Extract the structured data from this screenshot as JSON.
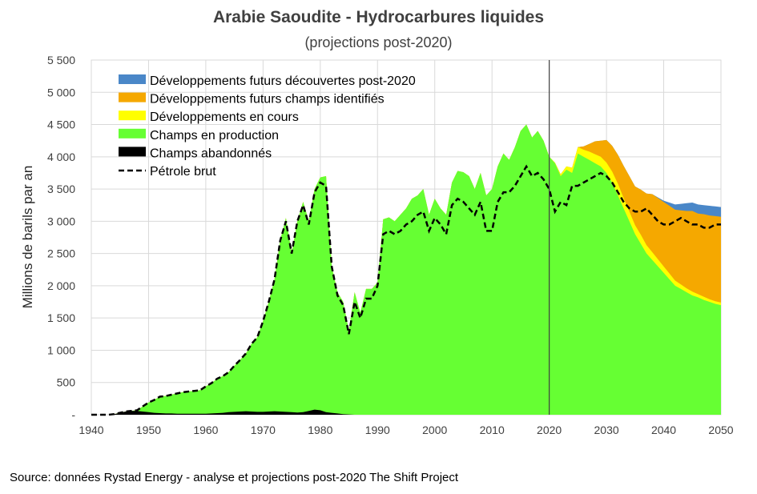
{
  "title": "Arabie Saoudite - Hydrocarbures liquides",
  "subtitle": "(projections post-2020)",
  "source": "Source:  données Rystad Energy - analyse et projections post-2020  The Shift Project",
  "colors": {
    "decouvertes": "#4a87c8",
    "identifies": "#f5a800",
    "en_cours": "#ffff00",
    "production": "#66ff33",
    "abandonnes": "#000000",
    "petrole": "#000000",
    "grid": "#d9d9d9",
    "marker_line": "#404040"
  },
  "chart_data": {
    "type": "area",
    "title": "Arabie Saoudite - Hydrocarbures liquides",
    "subtitle": "(projections post-2020)",
    "xlabel": "",
    "ylabel": "Millions de barils par an",
    "xlim": [
      1940,
      2050
    ],
    "ylim": [
      0,
      5500
    ],
    "x_ticks": [
      "1940",
      "1950",
      "1960",
      "1970",
      "1980",
      "1990",
      "2000",
      "2010",
      "2020",
      "2030",
      "2040",
      "2050"
    ],
    "y_ticks": [
      "-",
      "500",
      "1 000",
      "1 500",
      "2 000",
      "2 500",
      "3 000",
      "3 500",
      "4 000",
      "4 500",
      "5 000",
      "5 500"
    ],
    "grid": true,
    "legend_position": "top-left",
    "vertical_marker": 2020,
    "legend": [
      "Développements futurs découvertes post-2020",
      "Développements futurs champs identifiés",
      "Développements en cours",
      "Champs en production",
      "Champs abandonnés",
      "Pétrole brut"
    ],
    "x": [
      1940,
      1941,
      1942,
      1943,
      1944,
      1945,
      1946,
      1947,
      1948,
      1949,
      1950,
      1951,
      1952,
      1953,
      1954,
      1955,
      1956,
      1957,
      1958,
      1959,
      1960,
      1961,
      1962,
      1963,
      1964,
      1965,
      1966,
      1967,
      1968,
      1969,
      1970,
      1971,
      1972,
      1973,
      1974,
      1975,
      1976,
      1977,
      1978,
      1979,
      1980,
      1981,
      1982,
      1983,
      1984,
      1985,
      1986,
      1987,
      1988,
      1989,
      1990,
      1991,
      1992,
      1993,
      1994,
      1995,
      1996,
      1997,
      1998,
      1999,
      2000,
      2001,
      2002,
      2003,
      2004,
      2005,
      2006,
      2007,
      2008,
      2009,
      2010,
      2011,
      2012,
      2013,
      2014,
      2015,
      2016,
      2017,
      2018,
      2019,
      2020,
      2021,
      2022,
      2023,
      2024,
      2025,
      2026,
      2027,
      2028,
      2029,
      2030,
      2031,
      2032,
      2033,
      2034,
      2035,
      2036,
      2037,
      2038,
      2039,
      2040,
      2041,
      2042,
      2043,
      2044,
      2045,
      2046,
      2047,
      2048,
      2049,
      2050
    ],
    "series": [
      {
        "name": "Champs abandonnés",
        "values": [
          0,
          0,
          0,
          0,
          10,
          30,
          50,
          60,
          60,
          50,
          40,
          30,
          25,
          20,
          20,
          15,
          15,
          15,
          15,
          15,
          15,
          20,
          25,
          30,
          40,
          45,
          50,
          55,
          50,
          45,
          45,
          50,
          55,
          50,
          45,
          40,
          35,
          40,
          60,
          80,
          70,
          40,
          30,
          20,
          10,
          5,
          0,
          0,
          0,
          0,
          0,
          0,
          0,
          0,
          0,
          0,
          0,
          0,
          0,
          0,
          0,
          0,
          0,
          0,
          0,
          0,
          0,
          0,
          0,
          0,
          0,
          0,
          0,
          0,
          0,
          0,
          0,
          0,
          0,
          0,
          0,
          0,
          0,
          0,
          0,
          0,
          0,
          0,
          0,
          0,
          0,
          0,
          0,
          0,
          0,
          0,
          0,
          0,
          0,
          0,
          0,
          0,
          0,
          0,
          0,
          0,
          0,
          0,
          0,
          0,
          0
        ]
      },
      {
        "name": "Champs en production",
        "values": [
          0,
          0,
          0,
          0,
          10,
          30,
          50,
          60,
          70,
          130,
          190,
          230,
          280,
          290,
          310,
          330,
          350,
          360,
          370,
          380,
          440,
          490,
          560,
          600,
          660,
          760,
          850,
          950,
          1100,
          1200,
          1450,
          1750,
          2100,
          2700,
          3050,
          2500,
          3000,
          3300,
          3000,
          3500,
          3680,
          3700,
          2300,
          1900,
          1750,
          1300,
          1900,
          1580,
          1950,
          1950,
          2050,
          3030,
          3060,
          3000,
          3100,
          3200,
          3350,
          3400,
          3500,
          3100,
          3350,
          3200,
          3100,
          3600,
          3780,
          3760,
          3700,
          3500,
          3750,
          3400,
          3500,
          3850,
          4050,
          3950,
          4150,
          4400,
          4500,
          4300,
          4400,
          4250,
          4000,
          3900,
          3700,
          3800,
          3750,
          4050,
          4000,
          3950,
          3900,
          3850,
          3750,
          3600,
          3400,
          3200,
          3000,
          2800,
          2650,
          2500,
          2400,
          2300,
          2200,
          2100,
          2000,
          1950,
          1900,
          1850,
          1820,
          1780,
          1750,
          1720,
          1700
        ]
      },
      {
        "name": "Développements en cours",
        "values": [
          0,
          0,
          0,
          0,
          0,
          0,
          0,
          0,
          0,
          0,
          0,
          0,
          0,
          0,
          0,
          0,
          0,
          0,
          0,
          0,
          0,
          0,
          0,
          0,
          0,
          0,
          0,
          0,
          0,
          0,
          0,
          0,
          0,
          0,
          0,
          0,
          0,
          0,
          0,
          0,
          0,
          0,
          0,
          0,
          0,
          0,
          0,
          0,
          0,
          0,
          0,
          0,
          0,
          0,
          0,
          0,
          0,
          0,
          0,
          0,
          0,
          0,
          0,
          0,
          0,
          0,
          0,
          0,
          0,
          0,
          0,
          0,
          0,
          0,
          0,
          0,
          0,
          0,
          0,
          0,
          0,
          10,
          30,
          50,
          80,
          100,
          110,
          130,
          140,
          150,
          160,
          170,
          180,
          160,
          150,
          140,
          140,
          130,
          120,
          110,
          100,
          90,
          80,
          70,
          60,
          60,
          50,
          50,
          40,
          40,
          40
        ]
      },
      {
        "name": "Développements futurs champs identifiés",
        "values": [
          0,
          0,
          0,
          0,
          0,
          0,
          0,
          0,
          0,
          0,
          0,
          0,
          0,
          0,
          0,
          0,
          0,
          0,
          0,
          0,
          0,
          0,
          0,
          0,
          0,
          0,
          0,
          0,
          0,
          0,
          0,
          0,
          0,
          0,
          0,
          0,
          0,
          0,
          0,
          0,
          0,
          0,
          0,
          0,
          0,
          0,
          0,
          0,
          0,
          0,
          0,
          0,
          0,
          0,
          0,
          0,
          0,
          0,
          0,
          0,
          0,
          0,
          0,
          0,
          0,
          0,
          0,
          0,
          0,
          0,
          0,
          0,
          0,
          0,
          0,
          0,
          0,
          0,
          0,
          0,
          0,
          0,
          0,
          0,
          0,
          0,
          50,
          120,
          200,
          250,
          350,
          400,
          450,
          500,
          550,
          600,
          700,
          800,
          900,
          950,
          1000,
          1050,
          1100,
          1150,
          1200,
          1250,
          1250,
          1280,
          1300,
          1320,
          1330
        ]
      },
      {
        "name": "Développements futurs découvertes post-2020",
        "values": [
          0,
          0,
          0,
          0,
          0,
          0,
          0,
          0,
          0,
          0,
          0,
          0,
          0,
          0,
          0,
          0,
          0,
          0,
          0,
          0,
          0,
          0,
          0,
          0,
          0,
          0,
          0,
          0,
          0,
          0,
          0,
          0,
          0,
          0,
          0,
          0,
          0,
          0,
          0,
          0,
          0,
          0,
          0,
          0,
          0,
          0,
          0,
          0,
          0,
          0,
          0,
          0,
          0,
          0,
          0,
          0,
          0,
          0,
          0,
          0,
          0,
          0,
          0,
          0,
          0,
          0,
          0,
          0,
          0,
          0,
          0,
          0,
          0,
          0,
          0,
          0,
          0,
          0,
          0,
          0,
          0,
          0,
          0,
          0,
          0,
          0,
          0,
          0,
          0,
          0,
          0,
          0,
          0,
          0,
          0,
          0,
          0,
          0,
          0,
          10,
          20,
          50,
          80,
          100,
          120,
          130,
          140,
          140,
          150,
          150,
          150
        ]
      },
      {
        "name": "Pétrole brut",
        "values": [
          0,
          0,
          0,
          0,
          10,
          30,
          50,
          60,
          70,
          130,
          190,
          230,
          280,
          290,
          310,
          330,
          350,
          360,
          370,
          380,
          440,
          490,
          560,
          600,
          660,
          760,
          850,
          950,
          1100,
          1200,
          1450,
          1750,
          2100,
          2700,
          3000,
          2500,
          3000,
          3250,
          2950,
          3450,
          3600,
          3550,
          2300,
          1850,
          1700,
          1250,
          1750,
          1500,
          1800,
          1800,
          2000,
          2800,
          2850,
          2800,
          2850,
          2950,
          3000,
          3100,
          3150,
          2850,
          3050,
          2950,
          2800,
          3250,
          3350,
          3300,
          3200,
          3100,
          3300,
          2850,
          2850,
          3300,
          3450,
          3450,
          3550,
          3700,
          3850,
          3700,
          3750,
          3650,
          3500,
          3150,
          3300,
          3250,
          3550,
          3550,
          3600,
          3650,
          3700,
          3750,
          3700,
          3600,
          3450,
          3300,
          3200,
          3150,
          3150,
          3200,
          3100,
          3000,
          2950,
          2950,
          3000,
          3050,
          3000,
          2950,
          2950,
          2900,
          2900,
          2950,
          2950
        ]
      }
    ]
  }
}
